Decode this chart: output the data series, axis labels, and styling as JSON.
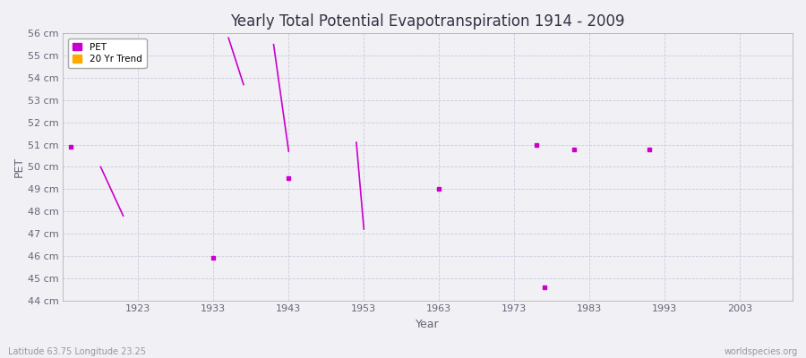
{
  "title": "Yearly Total Potential Evapotranspiration 1914 - 2009",
  "xlabel": "Year",
  "ylabel": "PET",
  "bottom_left": "Latitude 63.75 Longitude 23.25",
  "bottom_right": "worldspecies.org",
  "bg_color": "#f0f0f5",
  "plot_bg_color": "#f0f0f5",
  "grid_color": "#ccccdd",
  "ylim": [
    44,
    56
  ],
  "xlim": [
    1913,
    2010
  ],
  "ytick_labels": [
    "44 cm",
    "45 cm",
    "46 cm",
    "47 cm",
    "48 cm",
    "49 cm",
    "50 cm",
    "51 cm",
    "52 cm",
    "53 cm",
    "54 cm",
    "55 cm",
    "56 cm"
  ],
  "ytick_values": [
    44,
    45,
    46,
    47,
    48,
    49,
    50,
    51,
    52,
    53,
    54,
    55,
    56
  ],
  "xtick_values": [
    1923,
    1933,
    1943,
    1953,
    1963,
    1973,
    1983,
    1993,
    2003
  ],
  "pet_color": "#cc00cc",
  "trend_color": "#ffaa00",
  "pet_points": [
    [
      1914,
      50.9
    ],
    [
      1933,
      45.9
    ],
    [
      1943,
      49.5
    ],
    [
      1963,
      49.0
    ],
    [
      1976,
      51.0
    ],
    [
      1977,
      44.6
    ],
    [
      1981,
      50.8
    ],
    [
      1991,
      50.8
    ]
  ],
  "pet_lines": [
    [
      [
        1918,
        50.0
      ],
      [
        1921,
        47.8
      ]
    ],
    [
      [
        1935,
        55.8
      ],
      [
        1937,
        53.7
      ]
    ],
    [
      [
        1941,
        55.5
      ],
      [
        1943,
        50.7
      ]
    ],
    [
      [
        1952,
        51.1
      ],
      [
        1953,
        47.2
      ]
    ]
  ]
}
